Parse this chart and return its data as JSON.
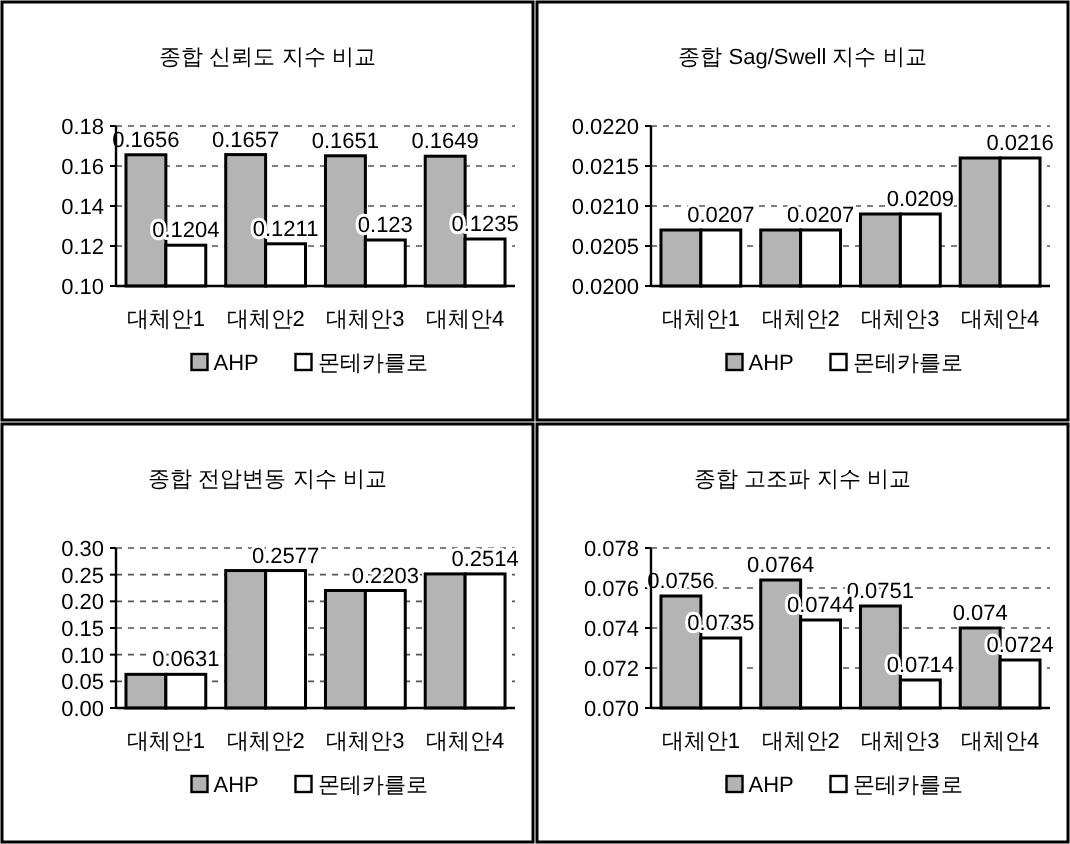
{
  "chart_data": [
    {
      "type": "bar",
      "title": "종합 신뢰도 지수 비교",
      "categories": [
        "대체안1",
        "대체안2",
        "대체안3",
        "대체안4"
      ],
      "series": [
        {
          "name": "AHP",
          "color": "#b4b4b4",
          "values": [
            0.1656,
            0.1657,
            0.1651,
            0.1649
          ]
        },
        {
          "name": "몬테카를로",
          "color": "#ffffff",
          "values": [
            0.1204,
            0.1211,
            0.123,
            0.1235
          ]
        }
      ],
      "data_labels": true,
      "ylim": [
        0.1,
        0.18
      ],
      "yticks": [
        {
          "value": 0.1,
          "label": "0.10"
        },
        {
          "value": 0.12,
          "label": "0.12"
        },
        {
          "value": 0.14,
          "label": "0.14"
        },
        {
          "value": 0.16,
          "label": "0.16"
        },
        {
          "value": 0.18,
          "label": "0.18"
        }
      ],
      "grid": "y",
      "legend": "bottom"
    },
    {
      "type": "bar",
      "title": "종합 Sag/Swell 지수 비교",
      "categories": [
        "대체안1",
        "대체안2",
        "대체안3",
        "대체안4"
      ],
      "series": [
        {
          "name": "AHP",
          "color": "#b4b4b4",
          "values": [
            0.0207,
            0.0207,
            0.0209,
            0.0216
          ]
        },
        {
          "name": "몬테카를로",
          "color": "#ffffff",
          "values": [
            0.0207,
            0.0207,
            0.0209,
            0.0216
          ],
          "value_labels": [
            "0.0207",
            "0.0207",
            "0.0209",
            "0.0216"
          ]
        }
      ],
      "ylim": [
        0.02,
        0.022
      ],
      "yticks": [
        {
          "value": 0.02,
          "label": "0.0200"
        },
        {
          "value": 0.0205,
          "label": "0.0205"
        },
        {
          "value": 0.021,
          "label": "0.0210"
        },
        {
          "value": 0.0215,
          "label": "0.0215"
        },
        {
          "value": 0.022,
          "label": "0.0220"
        }
      ],
      "grid": "y",
      "legend": "bottom"
    },
    {
      "type": "bar",
      "title": "종합 전압변동 지수 비교",
      "categories": [
        "대체안1",
        "대체안2",
        "대체안3",
        "대체안4"
      ],
      "series": [
        {
          "name": "AHP",
          "color": "#b4b4b4",
          "values": [
            0.0631,
            0.2577,
            0.2203,
            0.2514
          ]
        },
        {
          "name": "몬테카를로",
          "color": "#ffffff",
          "values": [
            0.0631,
            0.2577,
            0.2203,
            0.2514
          ],
          "value_labels": [
            "0.0631",
            "0.2577",
            "0.2203",
            "0.2514"
          ]
        }
      ],
      "ylim": [
        0.0,
        0.3
      ],
      "yticks": [
        {
          "value": 0.0,
          "label": "0.00"
        },
        {
          "value": 0.05,
          "label": "0.05"
        },
        {
          "value": 0.1,
          "label": "0.10"
        },
        {
          "value": 0.15,
          "label": "0.15"
        },
        {
          "value": 0.2,
          "label": "0.20"
        },
        {
          "value": 0.25,
          "label": "0.25"
        },
        {
          "value": 0.3,
          "label": "0.30"
        }
      ],
      "grid": "y",
      "legend": "bottom"
    },
    {
      "type": "bar",
      "title": "종합 고조파 지수 비교",
      "categories": [
        "대체안1",
        "대체안2",
        "대체안3",
        "대체안4"
      ],
      "series": [
        {
          "name": "AHP",
          "color": "#b4b4b4",
          "values": [
            0.0756,
            0.0764,
            0.0751,
            0.074
          ]
        },
        {
          "name": "몬테카를로",
          "color": "#ffffff",
          "values": [
            0.0735,
            0.0744,
            0.0714,
            0.0724
          ]
        }
      ],
      "data_labels": true,
      "ylim": [
        0.07,
        0.078
      ],
      "yticks": [
        {
          "value": 0.07,
          "label": "0.070"
        },
        {
          "value": 0.072,
          "label": "0.072"
        },
        {
          "value": 0.074,
          "label": "0.074"
        },
        {
          "value": 0.076,
          "label": "0.076"
        },
        {
          "value": 0.078,
          "label": "0.078"
        }
      ],
      "grid": "y",
      "legend": "bottom"
    }
  ]
}
